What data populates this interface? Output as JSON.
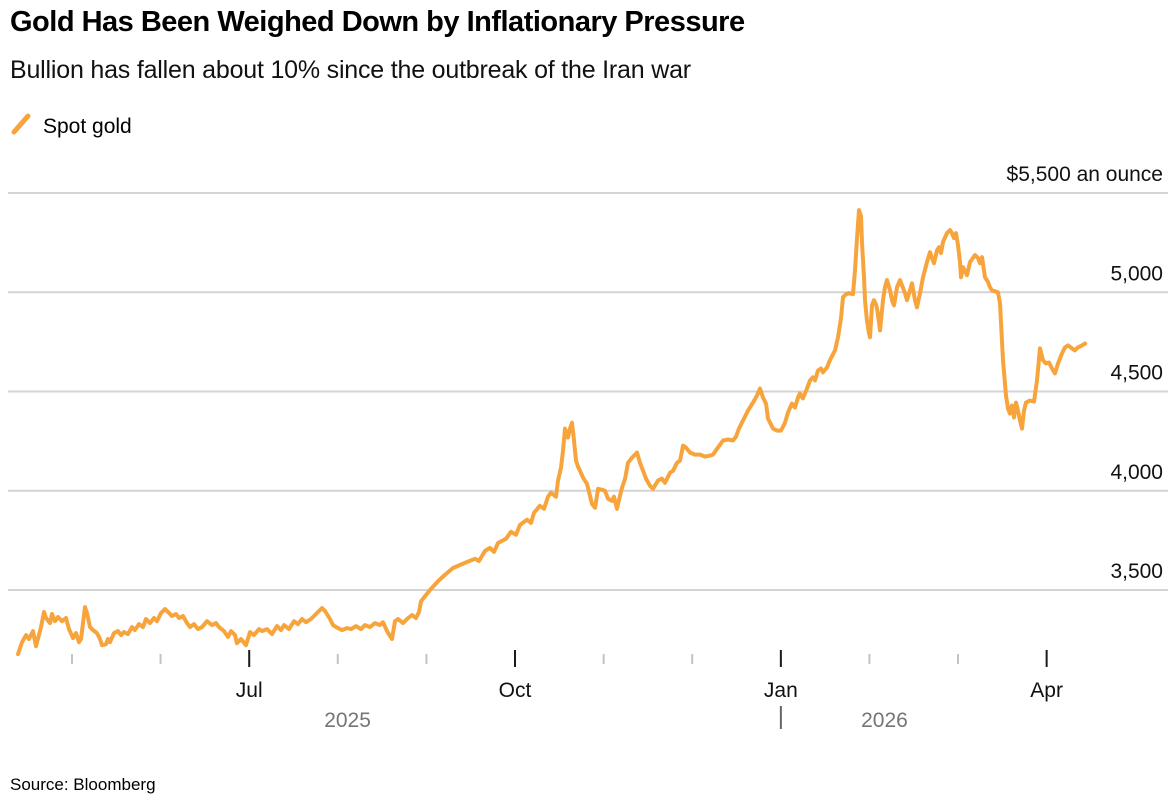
{
  "page": {
    "title": "Gold Has Been Weighed Down by Inflationary Pressure",
    "subtitle": "Bullion has fallen about 10% since the outbreak of the Iran war",
    "source": "Source: Bloomberg"
  },
  "legend": {
    "items": [
      {
        "label": "Spot gold",
        "color": "#F7A43C"
      }
    ]
  },
  "colors": {
    "line": "#F7A43C",
    "grid": "#D4D4D4",
    "tick_minor": "#C3C3C3",
    "tick_major": "#1a1a1a",
    "month_text": "#111111",
    "year_text": "#757575",
    "year_divider": "#666666",
    "axis_text": "#111111"
  },
  "chart_data": {
    "type": "line",
    "title": "Gold Has Been Weighed Down by Inflationary Pressure",
    "subtitle": "Bullion has fallen about 10% since the outbreak of the Iran war",
    "series": [
      {
        "name": "Spot gold",
        "color": "#F7A43C"
      }
    ],
    "y_axis": {
      "unit": "$ an ounce",
      "range": [
        3140,
        5500
      ],
      "grid": true,
      "ticks": [
        {
          "v": 5500,
          "label": "$5,500 an ounce"
        },
        {
          "v": 5000,
          "label": "5,000"
        },
        {
          "v": 4500,
          "label": "4,500"
        },
        {
          "v": 4000,
          "label": "4,000"
        },
        {
          "v": 3500,
          "label": "3,500"
        }
      ]
    },
    "x_axis": {
      "range": [
        "2025-04-15",
        "2026-04-18"
      ],
      "months": [
        {
          "f": 0.0539,
          "label": ""
        },
        {
          "f": 0.1362,
          "label": ""
        },
        {
          "f": 0.2186,
          "label": "Jul"
        },
        {
          "f": 0.3009,
          "label": ""
        },
        {
          "f": 0.3833,
          "label": ""
        },
        {
          "f": 0.4656,
          "label": "Oct"
        },
        {
          "f": 0.548,
          "label": ""
        },
        {
          "f": 0.6303,
          "label": ""
        },
        {
          "f": 0.7127,
          "label": "Jan"
        },
        {
          "f": 0.795,
          "label": ""
        },
        {
          "f": 0.8773,
          "label": ""
        },
        {
          "f": 0.9597,
          "label": "Apr"
        }
      ],
      "years": [
        {
          "f": 0.31,
          "label": "2025"
        },
        {
          "f": 0.809,
          "label": "2026"
        }
      ],
      "year_divider_f": 0.7127
    },
    "points": [
      [
        0.0037,
        3177
      ],
      [
        0.0074,
        3237
      ],
      [
        0.0112,
        3273
      ],
      [
        0.0139,
        3253
      ],
      [
        0.0177,
        3293
      ],
      [
        0.0204,
        3217
      ],
      [
        0.0251,
        3313
      ],
      [
        0.0279,
        3389
      ],
      [
        0.0297,
        3359
      ],
      [
        0.0335,
        3333
      ],
      [
        0.0353,
        3379
      ],
      [
        0.0381,
        3343
      ],
      [
        0.0409,
        3364
      ],
      [
        0.0446,
        3343
      ],
      [
        0.0483,
        3359
      ],
      [
        0.0511,
        3303
      ],
      [
        0.0548,
        3258
      ],
      [
        0.0576,
        3283
      ],
      [
        0.0604,
        3237
      ],
      [
        0.0623,
        3253
      ],
      [
        0.066,
        3414
      ],
      [
        0.0678,
        3384
      ],
      [
        0.0706,
        3313
      ],
      [
        0.0734,
        3298
      ],
      [
        0.0771,
        3283
      ],
      [
        0.0799,
        3253
      ],
      [
        0.0818,
        3222
      ],
      [
        0.0855,
        3227
      ],
      [
        0.0874,
        3253
      ],
      [
        0.0892,
        3237
      ],
      [
        0.0929,
        3283
      ],
      [
        0.0967,
        3293
      ],
      [
        0.0994,
        3273
      ],
      [
        0.1022,
        3288
      ],
      [
        0.1059,
        3278
      ],
      [
        0.1097,
        3313
      ],
      [
        0.1124,
        3298
      ],
      [
        0.1162,
        3328
      ],
      [
        0.1199,
        3313
      ],
      [
        0.1227,
        3354
      ],
      [
        0.1264,
        3333
      ],
      [
        0.1301,
        3359
      ],
      [
        0.1329,
        3343
      ],
      [
        0.1366,
        3384
      ],
      [
        0.1403,
        3404
      ],
      [
        0.1431,
        3389
      ],
      [
        0.1468,
        3369
      ],
      [
        0.1506,
        3379
      ],
      [
        0.1534,
        3359
      ],
      [
        0.1571,
        3369
      ],
      [
        0.1608,
        3333
      ],
      [
        0.1636,
        3313
      ],
      [
        0.1673,
        3328
      ],
      [
        0.171,
        3303
      ],
      [
        0.1747,
        3313
      ],
      [
        0.1794,
        3343
      ],
      [
        0.184,
        3323
      ],
      [
        0.1877,
        3333
      ],
      [
        0.1905,
        3313
      ],
      [
        0.1952,
        3293
      ],
      [
        0.1989,
        3263
      ],
      [
        0.2017,
        3293
      ],
      [
        0.2054,
        3273
      ],
      [
        0.2072,
        3232
      ],
      [
        0.211,
        3253
      ],
      [
        0.2156,
        3222
      ],
      [
        0.2193,
        3288
      ],
      [
        0.223,
        3273
      ],
      [
        0.2277,
        3303
      ],
      [
        0.2305,
        3293
      ],
      [
        0.2351,
        3303
      ],
      [
        0.2398,
        3278
      ],
      [
        0.2444,
        3318
      ],
      [
        0.2481,
        3298
      ],
      [
        0.2509,
        3323
      ],
      [
        0.2556,
        3303
      ],
      [
        0.2602,
        3343
      ],
      [
        0.2639,
        3328
      ],
      [
        0.2677,
        3354
      ],
      [
        0.2714,
        3338
      ],
      [
        0.276,
        3354
      ],
      [
        0.2807,
        3379
      ],
      [
        0.2862,
        3409
      ],
      [
        0.289,
        3394
      ],
      [
        0.2937,
        3354
      ],
      [
        0.2965,
        3323
      ],
      [
        0.3011,
        3308
      ],
      [
        0.3048,
        3298
      ],
      [
        0.3095,
        3308
      ],
      [
        0.3132,
        3303
      ],
      [
        0.3178,
        3318
      ],
      [
        0.3225,
        3303
      ],
      [
        0.3262,
        3323
      ],
      [
        0.3309,
        3313
      ],
      [
        0.3355,
        3333
      ],
      [
        0.3401,
        3323
      ],
      [
        0.3429,
        3338
      ],
      [
        0.3467,
        3293
      ],
      [
        0.3513,
        3253
      ],
      [
        0.3541,
        3343
      ],
      [
        0.3569,
        3354
      ],
      [
        0.3615,
        3333
      ],
      [
        0.3652,
        3354
      ],
      [
        0.3699,
        3374
      ],
      [
        0.3736,
        3359
      ],
      [
        0.3764,
        3389
      ],
      [
        0.3783,
        3444
      ],
      [
        0.3866,
        3500
      ],
      [
        0.3941,
        3545
      ],
      [
        0.4015,
        3581
      ],
      [
        0.408,
        3611
      ],
      [
        0.4145,
        3626
      ],
      [
        0.421,
        3641
      ],
      [
        0.4284,
        3657
      ],
      [
        0.4322,
        3646
      ],
      [
        0.4377,
        3697
      ],
      [
        0.4424,
        3712
      ],
      [
        0.4461,
        3692
      ],
      [
        0.4498,
        3737
      ],
      [
        0.4572,
        3758
      ],
      [
        0.4619,
        3793
      ],
      [
        0.4665,
        3778
      ],
      [
        0.4703,
        3828
      ],
      [
        0.4768,
        3854
      ],
      [
        0.4805,
        3838
      ],
      [
        0.4833,
        3889
      ],
      [
        0.4888,
        3924
      ],
      [
        0.4926,
        3909
      ],
      [
        0.4963,
        3970
      ],
      [
        0.4991,
        3990
      ],
      [
        0.5037,
        3970
      ],
      [
        0.5056,
        4051
      ],
      [
        0.5084,
        4116
      ],
      [
        0.5102,
        4202
      ],
      [
        0.5121,
        4313
      ],
      [
        0.5149,
        4268
      ],
      [
        0.5167,
        4313
      ],
      [
        0.5186,
        4343
      ],
      [
        0.5204,
        4253
      ],
      [
        0.5223,
        4152
      ],
      [
        0.5242,
        4121
      ],
      [
        0.526,
        4101
      ],
      [
        0.5288,
        4066
      ],
      [
        0.5325,
        4035
      ],
      [
        0.5372,
        3934
      ],
      [
        0.54,
        3914
      ],
      [
        0.5428,
        4010
      ],
      [
        0.5465,
        4005
      ],
      [
        0.5493,
        4000
      ],
      [
        0.552,
        3960
      ],
      [
        0.5558,
        3949
      ],
      [
        0.5576,
        3970
      ],
      [
        0.5604,
        3909
      ],
      [
        0.5632,
        3975
      ],
      [
        0.5651,
        4015
      ],
      [
        0.5679,
        4061
      ],
      [
        0.5706,
        4141
      ],
      [
        0.5744,
        4167
      ],
      [
        0.579,
        4192
      ],
      [
        0.5818,
        4141
      ],
      [
        0.5846,
        4101
      ],
      [
        0.5874,
        4061
      ],
      [
        0.5911,
        4025
      ],
      [
        0.5939,
        4010
      ],
      [
        0.5985,
        4051
      ],
      [
        0.6022,
        4061
      ],
      [
        0.605,
        4040
      ],
      [
        0.6097,
        4091
      ],
      [
        0.6125,
        4101
      ],
      [
        0.6162,
        4141
      ],
      [
        0.619,
        4152
      ],
      [
        0.6218,
        4227
      ],
      [
        0.6245,
        4217
      ],
      [
        0.6283,
        4192
      ],
      [
        0.6329,
        4182
      ],
      [
        0.6376,
        4182
      ],
      [
        0.6422,
        4172
      ],
      [
        0.6468,
        4177
      ],
      [
        0.6496,
        4182
      ],
      [
        0.6534,
        4212
      ],
      [
        0.6589,
        4253
      ],
      [
        0.6636,
        4258
      ],
      [
        0.6682,
        4253
      ],
      [
        0.671,
        4273
      ],
      [
        0.6738,
        4313
      ],
      [
        0.6775,
        4354
      ],
      [
        0.6822,
        4404
      ],
      [
        0.6868,
        4444
      ],
      [
        0.6905,
        4480
      ],
      [
        0.6933,
        4515
      ],
      [
        0.6961,
        4470
      ],
      [
        0.6989,
        4439
      ],
      [
        0.7007,
        4364
      ],
      [
        0.7054,
        4313
      ],
      [
        0.7091,
        4303
      ],
      [
        0.7128,
        4303
      ],
      [
        0.7165,
        4343
      ],
      [
        0.7193,
        4394
      ],
      [
        0.723,
        4439
      ],
      [
        0.7258,
        4419
      ],
      [
        0.7286,
        4470
      ],
      [
        0.7304,
        4490
      ],
      [
        0.7332,
        4465
      ],
      [
        0.737,
        4515
      ],
      [
        0.7398,
        4556
      ],
      [
        0.7425,
        4571
      ],
      [
        0.7444,
        4556
      ],
      [
        0.7472,
        4606
      ],
      [
        0.75,
        4616
      ],
      [
        0.7518,
        4596
      ],
      [
        0.7556,
        4621
      ],
      [
        0.7583,
        4657
      ],
      [
        0.763,
        4707
      ],
      [
        0.7658,
        4773
      ],
      [
        0.7686,
        4869
      ],
      [
        0.7704,
        4975
      ],
      [
        0.7732,
        4990
      ],
      [
        0.776,
        4995
      ],
      [
        0.7797,
        4990
      ],
      [
        0.7816,
        5111
      ],
      [
        0.7834,
        5263
      ],
      [
        0.7853,
        5414
      ],
      [
        0.7872,
        5384
      ],
      [
        0.7881,
        5247
      ],
      [
        0.79,
        5076
      ],
      [
        0.7909,
        4960
      ],
      [
        0.7927,
        4859
      ],
      [
        0.7946,
        4793
      ],
      [
        0.7955,
        4773
      ],
      [
        0.7974,
        4934
      ],
      [
        0.7992,
        4960
      ],
      [
        0.8011,
        4939
      ],
      [
        0.802,
        4919
      ],
      [
        0.8039,
        4849
      ],
      [
        0.8048,
        4808
      ],
      [
        0.8076,
        4960
      ],
      [
        0.8094,
        5025
      ],
      [
        0.8113,
        5061
      ],
      [
        0.8141,
        5010
      ],
      [
        0.816,
        4960
      ],
      [
        0.8178,
        4934
      ],
      [
        0.8206,
        5025
      ],
      [
        0.8234,
        5061
      ],
      [
        0.8253,
        5035
      ],
      [
        0.8281,
        4995
      ],
      [
        0.8299,
        4960
      ],
      [
        0.8327,
        5010
      ],
      [
        0.8346,
        5045
      ],
      [
        0.8374,
        4960
      ],
      [
        0.8392,
        4924
      ],
      [
        0.842,
        4995
      ],
      [
        0.8448,
        5076
      ],
      [
        0.8485,
        5152
      ],
      [
        0.8513,
        5202
      ],
      [
        0.8532,
        5172
      ],
      [
        0.855,
        5146
      ],
      [
        0.8578,
        5212
      ],
      [
        0.8597,
        5227
      ],
      [
        0.8615,
        5197
      ],
      [
        0.8634,
        5253
      ],
      [
        0.8671,
        5298
      ],
      [
        0.8699,
        5313
      ],
      [
        0.8717,
        5298
      ],
      [
        0.8736,
        5273
      ],
      [
        0.8755,
        5298
      ],
      [
        0.8773,
        5237
      ],
      [
        0.8792,
        5152
      ],
      [
        0.8801,
        5076
      ],
      [
        0.882,
        5126
      ],
      [
        0.8857,
        5086
      ],
      [
        0.8885,
        5152
      ],
      [
        0.8931,
        5187
      ],
      [
        0.8959,
        5172
      ],
      [
        0.8978,
        5146
      ],
      [
        0.8996,
        5177
      ],
      [
        0.9024,
        5076
      ],
      [
        0.9052,
        5051
      ],
      [
        0.9071,
        5025
      ],
      [
        0.9089,
        5010
      ],
      [
        0.9117,
        5005
      ],
      [
        0.9145,
        5000
      ],
      [
        0.9164,
        4944
      ],
      [
        0.9191,
        4657
      ],
      [
        0.9219,
        4480
      ],
      [
        0.9238,
        4414
      ],
      [
        0.9256,
        4389
      ],
      [
        0.9275,
        4429
      ],
      [
        0.9294,
        4369
      ],
      [
        0.9312,
        4444
      ],
      [
        0.9331,
        4404
      ],
      [
        0.9349,
        4354
      ],
      [
        0.9368,
        4313
      ],
      [
        0.9387,
        4404
      ],
      [
        0.9405,
        4444
      ],
      [
        0.9442,
        4454
      ],
      [
        0.948,
        4449
      ],
      [
        0.9507,
        4556
      ],
      [
        0.9535,
        4717
      ],
      [
        0.9563,
        4657
      ],
      [
        0.9591,
        4641
      ],
      [
        0.9619,
        4646
      ],
      [
        0.9647,
        4616
      ],
      [
        0.9675,
        4591
      ],
      [
        0.9703,
        4641
      ],
      [
        0.974,
        4692
      ],
      [
        0.9768,
        4722
      ],
      [
        0.9796,
        4732
      ],
      [
        0.9833,
        4717
      ],
      [
        0.9861,
        4707
      ],
      [
        0.9888,
        4722
      ],
      [
        0.9926,
        4732
      ],
      [
        0.9954,
        4742
      ]
    ]
  }
}
